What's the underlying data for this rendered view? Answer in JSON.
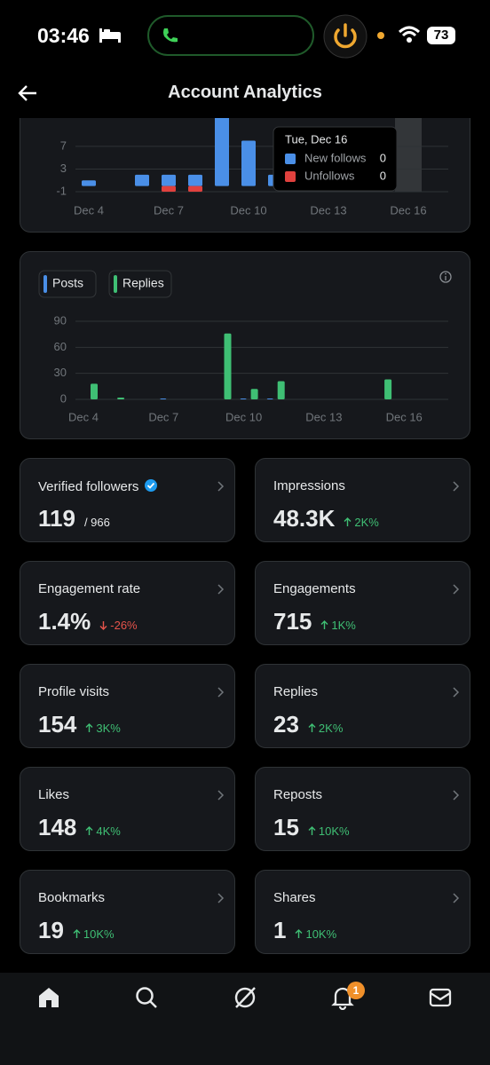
{
  "status_bar": {
    "time": "03:46",
    "battery": "73"
  },
  "header": {
    "title": "Account Analytics"
  },
  "follows_chart": {
    "type": "bar",
    "categories": [
      "Dec 4",
      null,
      null,
      "Dec 7",
      null,
      null,
      "Dec 10",
      null,
      null,
      "Dec 13",
      null,
      null,
      "Dec 16",
      null
    ],
    "series": [
      {
        "name": "New follows",
        "color": "#4a8fe7",
        "values": [
          1,
          0,
          2,
          2,
          2,
          13,
          8,
          2,
          0,
          0,
          0,
          0,
          0,
          0
        ]
      },
      {
        "name": "Unfollows",
        "color": "#e0413e",
        "values": [
          0,
          0,
          0,
          -1,
          -1,
          0,
          0,
          0,
          0,
          0,
          0,
          0,
          0,
          0
        ]
      }
    ],
    "ylim": [
      -1,
      12
    ],
    "yticks": [
      -1,
      3,
      7
    ],
    "grid": true,
    "tooltip": {
      "title": "Tue, Dec 16"
    }
  },
  "posts_chart": {
    "type": "bar",
    "categories": [
      "Dec 4",
      null,
      null,
      "Dec 7",
      null,
      null,
      "Dec 10",
      null,
      null,
      "Dec 13",
      null,
      null,
      "Dec 16",
      null
    ],
    "series": [
      {
        "name": "Posts",
        "color": "#4a8fe7",
        "values": [
          0,
          0,
          0,
          1,
          0,
          0,
          1,
          1,
          0,
          0,
          0,
          0,
          0,
          0
        ]
      },
      {
        "name": "Replies",
        "color": "#3fbf74",
        "values": [
          18,
          2,
          0,
          0,
          0,
          76,
          12,
          21,
          0,
          0,
          0,
          23,
          0,
          0
        ]
      }
    ],
    "ylim": [
      0,
      90
    ],
    "yticks": [
      0,
      30,
      60,
      90
    ],
    "grid": true
  },
  "metrics": [
    {
      "label": "Verified followers",
      "value": "119",
      "total": "/ 966"
    },
    {
      "label": "Impressions",
      "value": "48.3K",
      "change": "2K%"
    },
    {
      "label": "Engagement rate",
      "value": "1.4%",
      "change": "-26%"
    },
    {
      "label": "Engagements",
      "value": "715",
      "change": "1K%"
    },
    {
      "label": "Profile visits",
      "value": "154",
      "change": "3K%"
    },
    {
      "label": "Replies",
      "value": "23",
      "change": "2K%"
    },
    {
      "label": "Likes",
      "value": "148",
      "change": "4K%"
    },
    {
      "label": "Reposts",
      "value": "15",
      "change": "10K%"
    },
    {
      "label": "Bookmarks",
      "value": "19",
      "change": "10K%"
    },
    {
      "label": "Shares",
      "value": "1",
      "change": "10K%"
    }
  ],
  "nav": {
    "notifications": "1"
  }
}
